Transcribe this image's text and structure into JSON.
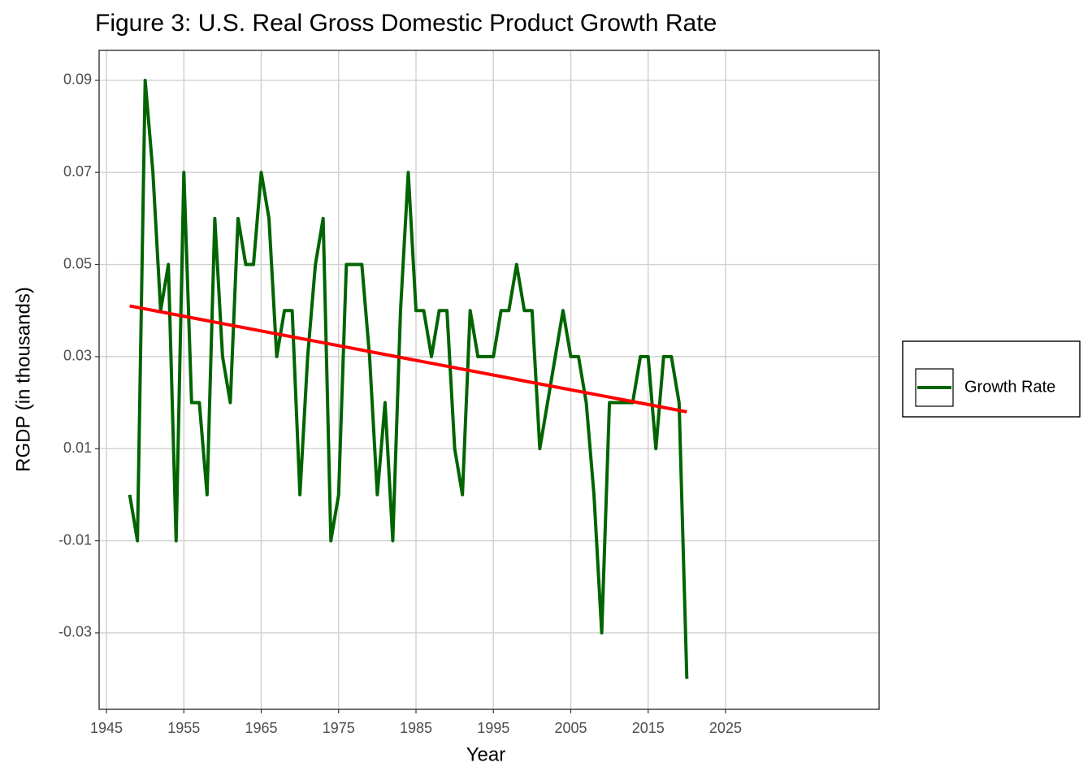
{
  "chart_data": {
    "type": "line",
    "title": "Figure 3: U.S. Real Gross Domestic Product Growth Rate",
    "x_label": "Year",
    "y_label": "RGDP (in thousands)",
    "x": [
      1948,
      1949,
      1950,
      1951,
      1952,
      1953,
      1954,
      1955,
      1956,
      1957,
      1958,
      1959,
      1960,
      1961,
      1962,
      1963,
      1964,
      1965,
      1966,
      1967,
      1968,
      1969,
      1970,
      1971,
      1972,
      1973,
      1974,
      1975,
      1976,
      1977,
      1978,
      1979,
      1980,
      1981,
      1982,
      1983,
      1984,
      1985,
      1986,
      1987,
      1988,
      1989,
      1990,
      1991,
      1992,
      1993,
      1994,
      1995,
      1996,
      1997,
      1998,
      1999,
      2000,
      2001,
      2002,
      2003,
      2004,
      2005,
      2006,
      2007,
      2008,
      2009,
      2010,
      2011,
      2012,
      2013,
      2014,
      2015,
      2016,
      2017,
      2018,
      2019,
      2020
    ],
    "series": [
      {
        "name": "Growth Rate",
        "color": "#006400",
        "values": [
          0.0,
          -0.01,
          0.09,
          0.07,
          0.04,
          0.05,
          -0.01,
          0.07,
          0.02,
          0.02,
          0.0,
          0.06,
          0.03,
          0.02,
          0.06,
          0.05,
          0.05,
          0.07,
          0.06,
          0.03,
          0.04,
          0.04,
          0.0,
          0.03,
          0.05,
          0.06,
          -0.01,
          0.0,
          0.05,
          0.05,
          0.05,
          0.03,
          0.0,
          0.02,
          -0.01,
          0.04,
          0.07,
          0.04,
          0.04,
          0.03,
          0.04,
          0.04,
          0.01,
          0.0,
          0.04,
          0.03,
          0.03,
          0.03,
          0.04,
          0.04,
          0.05,
          0.04,
          0.04,
          0.01,
          0.02,
          0.03,
          0.04,
          0.03,
          0.03,
          0.02,
          0.0,
          -0.03,
          0.02,
          0.02,
          0.02,
          0.02,
          0.03,
          0.03,
          0.01,
          0.03,
          0.03,
          0.02,
          -0.04
        ]
      }
    ],
    "trend": {
      "color": "#ff0000",
      "x": [
        1948,
        2020
      ],
      "values": [
        0.041,
        0.018
      ]
    },
    "xlim": [
      1944.05,
      2044.85
    ],
    "xticks": [
      1945,
      1955,
      1965,
      1975,
      1985,
      1995,
      2005,
      2015,
      2025
    ],
    "ylim": [
      -0.0466,
      0.0965
    ],
    "yticks": [
      -0.03,
      -0.01,
      0.01,
      0.03,
      0.05,
      0.07,
      0.09
    ],
    "grid": true,
    "legend": "right"
  }
}
